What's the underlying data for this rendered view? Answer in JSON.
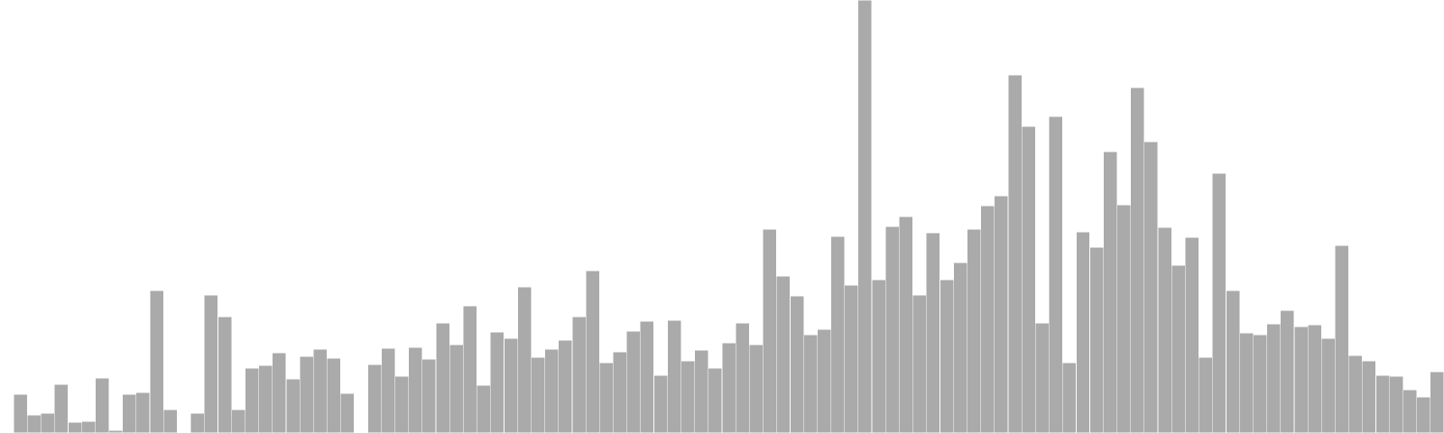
{
  "chart_data": {
    "type": "bar",
    "title": "",
    "xlabel": "",
    "ylabel": "",
    "ylim": [
      0,
      480
    ],
    "grid": false,
    "legend": "none",
    "bar_color": "#aaaaaa",
    "bar_edge_color": "#ffffff",
    "background": "#ffffff",
    "values": [
      0,
      43,
      20,
      22,
      54,
      12,
      13,
      61,
      3,
      43,
      45,
      158,
      26,
      0,
      22,
      153,
      129,
      26,
      72,
      75,
      89,
      60,
      85,
      93,
      83,
      44,
      0,
      76,
      94,
      63,
      95,
      82,
      122,
      98,
      141,
      53,
      112,
      105,
      162,
      84,
      93,
      103,
      129,
      180,
      78,
      90,
      113,
      124,
      64,
      125,
      80,
      92,
      72,
      100,
      122,
      98,
      226,
      174,
      152,
      109,
      115,
      218,
      164,
      480,
      170,
      229,
      240,
      153,
      222,
      170,
      189,
      226,
      252,
      263,
      397,
      340,
      122,
      351,
      78,
      223,
      206,
      312,
      253,
      383,
      323,
      228,
      186,
      217,
      84,
      288,
      158,
      111,
      109,
      121,
      136,
      118,
      120,
      105,
      208,
      86,
      80,
      64,
      63,
      48,
      40,
      68
    ]
  }
}
